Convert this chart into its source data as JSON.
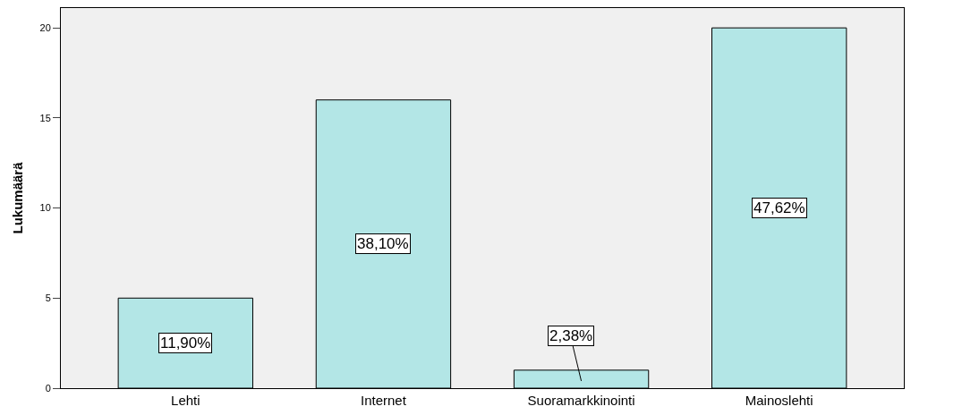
{
  "chart_data": {
    "type": "bar",
    "ylabel": "Lukumäärä",
    "categories": [
      "Lehti",
      "Internet",
      "Suoramarkkinointi",
      "Mainoslehti"
    ],
    "values": [
      5,
      16,
      1,
      20
    ],
    "annotations": [
      "11,90%",
      "38,10%",
      "2,38%",
      "47,62%"
    ],
    "color": "#b3e6e6",
    "ylim": [
      0,
      21.1
    ],
    "yticks": [
      0,
      5,
      10,
      15,
      20
    ],
    "grid": false,
    "legend": false
  }
}
